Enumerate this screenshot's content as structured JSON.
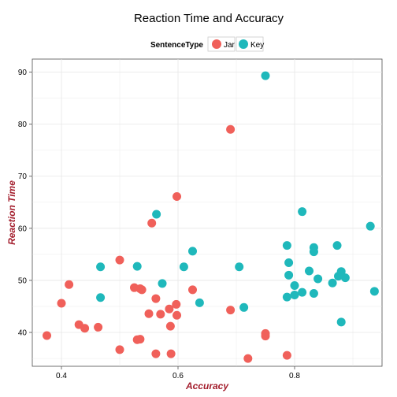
{
  "chart_data": {
    "type": "scatter",
    "title": "Reaction Time and Accuracy",
    "xlabel": "Accuracy",
    "ylabel": "Reaction Time",
    "xlim": [
      0.35,
      0.95
    ],
    "ylim": [
      33.5,
      92.5
    ],
    "x_ticks": [
      0.4,
      0.6,
      0.8
    ],
    "x_tick_labels": [
      "0.4",
      "0.6",
      "0.8"
    ],
    "y_ticks": [
      40,
      50,
      60,
      70,
      80,
      90
    ],
    "y_tick_labels": [
      "40",
      "50",
      "60",
      "70",
      "80",
      "90"
    ],
    "grid": true,
    "legend": {
      "title": "SentenceType",
      "position": "top"
    },
    "axis_label_color": "#a31d2c",
    "series": [
      {
        "name": "Jar",
        "color": "#f0605a",
        "points": [
          [
            0.375,
            39.4
          ],
          [
            0.4,
            45.6
          ],
          [
            0.413,
            49.2
          ],
          [
            0.43,
            41.5
          ],
          [
            0.44,
            40.8
          ],
          [
            0.463,
            41.0
          ],
          [
            0.5,
            36.7
          ],
          [
            0.5,
            53.9
          ],
          [
            0.525,
            48.6
          ],
          [
            0.53,
            38.6
          ],
          [
            0.535,
            48.4
          ],
          [
            0.535,
            38.7
          ],
          [
            0.538,
            48.2
          ],
          [
            0.55,
            43.6
          ],
          [
            0.555,
            61.0
          ],
          [
            0.562,
            46.5
          ],
          [
            0.562,
            35.9
          ],
          [
            0.57,
            43.5
          ],
          [
            0.585,
            44.5
          ],
          [
            0.587,
            41.2
          ],
          [
            0.588,
            35.9
          ],
          [
            0.597,
            45.4
          ],
          [
            0.598,
            66.1
          ],
          [
            0.598,
            43.3
          ],
          [
            0.625,
            48.2
          ],
          [
            0.69,
            79.0
          ],
          [
            0.69,
            44.3
          ],
          [
            0.75,
            39.8
          ],
          [
            0.75,
            39.3
          ],
          [
            0.72,
            35.0
          ],
          [
            0.787,
            35.6
          ]
        ]
      },
      {
        "name": "Key",
        "color": "#1fb8bb",
        "points": [
          [
            0.467,
            52.6
          ],
          [
            0.467,
            46.7
          ],
          [
            0.53,
            52.7
          ],
          [
            0.563,
            62.7
          ],
          [
            0.573,
            49.4
          ],
          [
            0.61,
            52.6
          ],
          [
            0.625,
            55.6
          ],
          [
            0.637,
            45.7
          ],
          [
            0.705,
            52.6
          ],
          [
            0.713,
            44.8
          ],
          [
            0.75,
            89.3
          ],
          [
            0.787,
            56.7
          ],
          [
            0.787,
            46.8
          ],
          [
            0.79,
            53.4
          ],
          [
            0.79,
            51.0
          ],
          [
            0.8,
            49.0
          ],
          [
            0.8,
            47.2
          ],
          [
            0.813,
            63.2
          ],
          [
            0.813,
            47.7
          ],
          [
            0.825,
            51.8
          ],
          [
            0.833,
            56.3
          ],
          [
            0.833,
            55.5
          ],
          [
            0.833,
            47.5
          ],
          [
            0.84,
            50.3
          ],
          [
            0.865,
            49.5
          ],
          [
            0.873,
            56.7
          ],
          [
            0.875,
            50.8
          ],
          [
            0.88,
            51.7
          ],
          [
            0.88,
            42.0
          ],
          [
            0.887,
            50.5
          ],
          [
            0.93,
            60.4
          ],
          [
            0.937,
            47.9
          ]
        ]
      }
    ]
  }
}
